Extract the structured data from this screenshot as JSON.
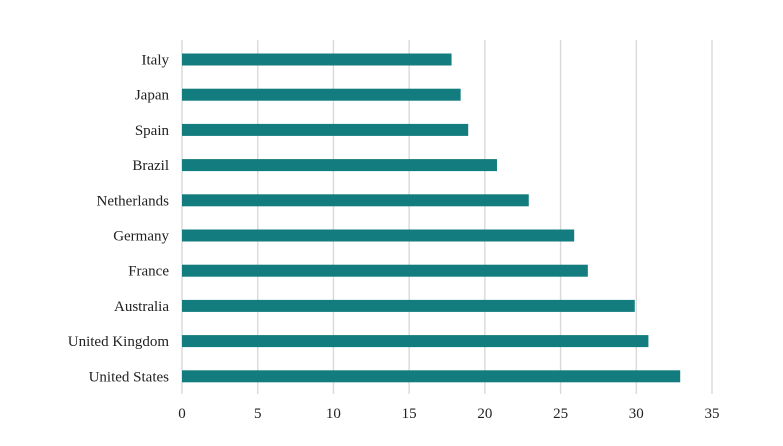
{
  "chart_data": {
    "type": "bar",
    "orientation": "horizontal",
    "categories": [
      "Italy",
      "Japan",
      "Spain",
      "Brazil",
      "Netherlands",
      "Germany",
      "France",
      "Australia",
      "United Kingdom",
      "United States"
    ],
    "values": [
      17.8,
      18.4,
      18.9,
      20.8,
      22.9,
      25.9,
      26.8,
      29.9,
      30.8,
      32.9
    ],
    "title": "",
    "xlabel": "",
    "ylabel": "",
    "xlim": [
      0,
      35
    ],
    "xticks": [
      "0",
      "5",
      "10",
      "15",
      "20",
      "25",
      "30",
      "35"
    ],
    "grid": "vertical",
    "legend": "none",
    "colors": {
      "bar": "#137c7e",
      "grid": "#d9d9d9"
    }
  }
}
